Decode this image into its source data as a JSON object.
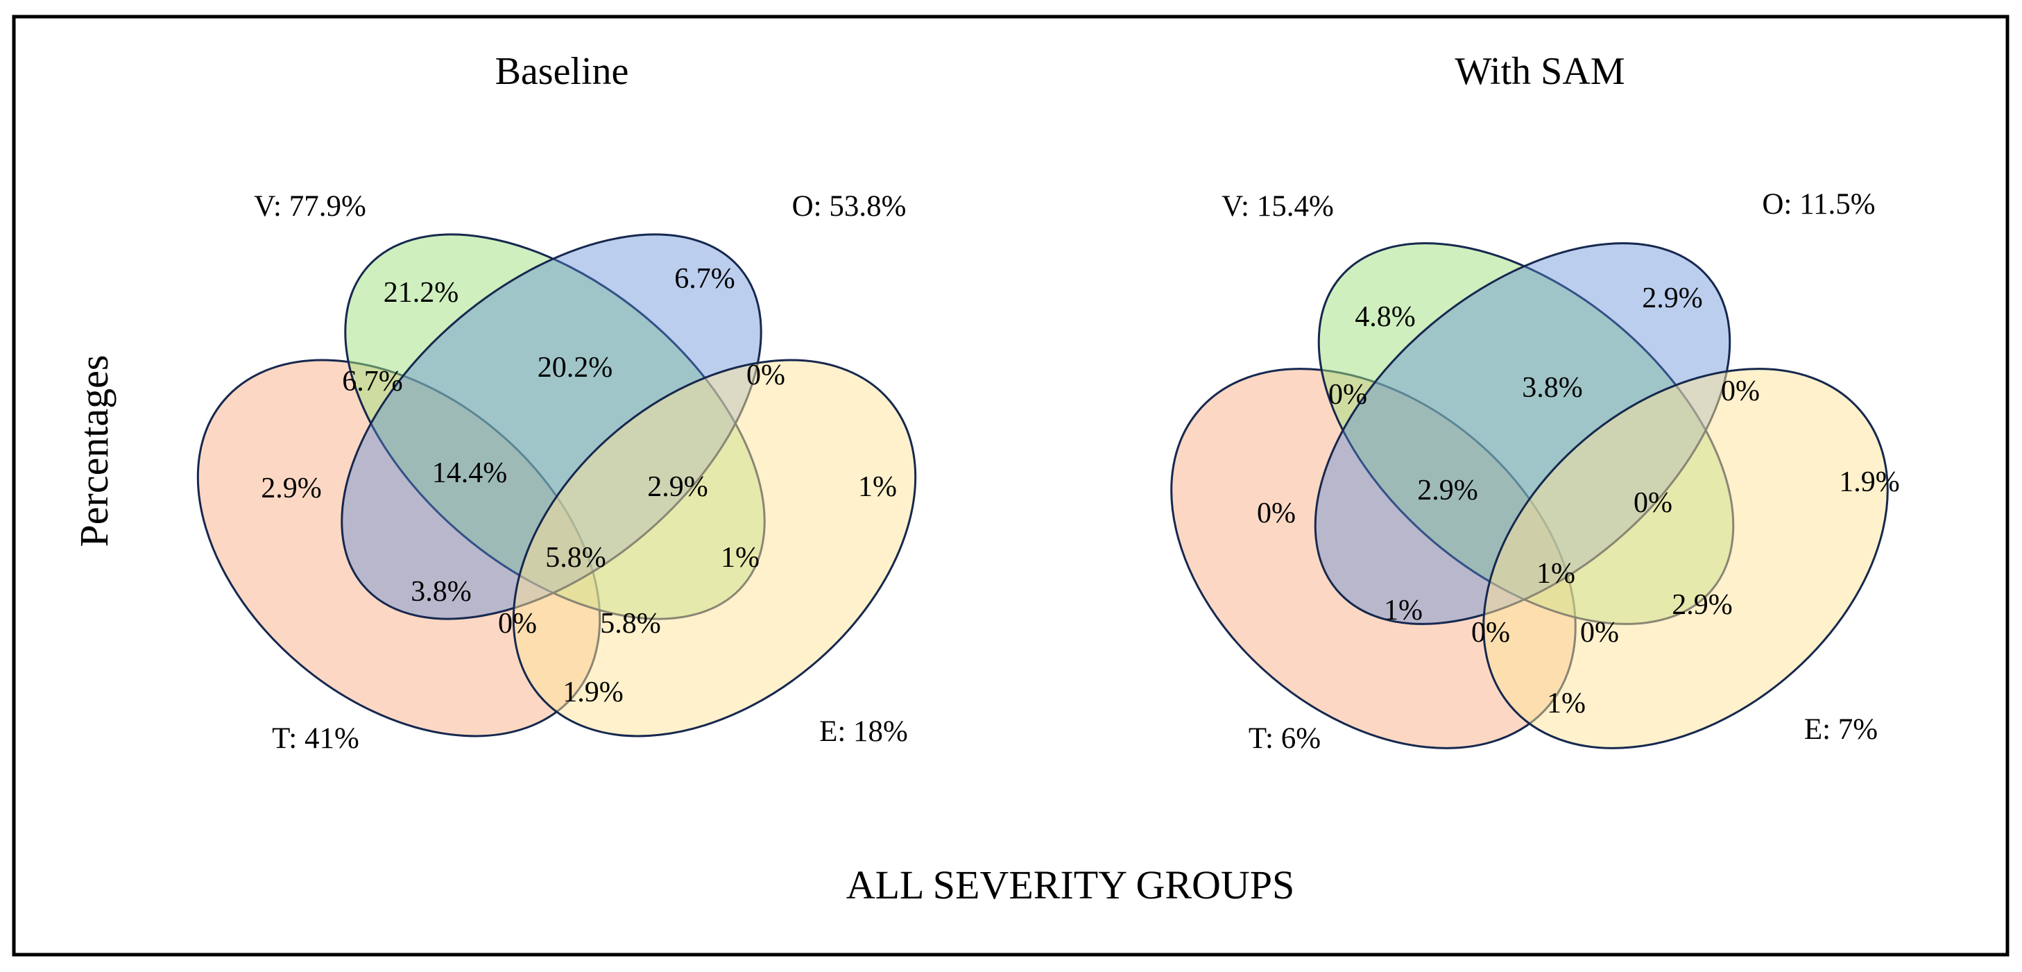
{
  "figure": {
    "ylabel": "Percentages",
    "xlabel": "ALL SEVERITY GROUPS"
  },
  "colors": {
    "T": "#f9a87c",
    "V": "#9fe07e",
    "O": "#5c8ad6",
    "E": "#fde49a",
    "outline": "#16284f"
  },
  "panels": [
    {
      "title": "Baseline",
      "sets": {
        "V": "V: 77.9%",
        "O": "O: 53.8%",
        "T": "T: 41%",
        "E": "E: 18%"
      },
      "regions": {
        "V_only": "21.2%",
        "O_only": "6.7%",
        "T_only": "2.9%",
        "E_only": "1%",
        "TV": "6.7%",
        "VO": "20.2%",
        "OE": "0%",
        "TVO": "14.4%",
        "VOE": "2.9%",
        "TVOE": "5.8%",
        "VE": "1%",
        "TO": "3.8%",
        "TOE": "0%",
        "TVE": "5.8%",
        "TE": "1.9%"
      }
    },
    {
      "title": "With SAM",
      "sets": {
        "V": "V: 15.4%",
        "O": "O: 11.5%",
        "T": "T: 6%",
        "E": "E: 7%"
      },
      "regions": {
        "V_only": "4.8%",
        "O_only": "2.9%",
        "T_only": "0%",
        "E_only": "1.9%",
        "TV": "0%",
        "VO": "3.8%",
        "OE": "0%",
        "TVO": "2.9%",
        "VOE": "0%",
        "TVOE": "1%",
        "VE": "2.9%",
        "TO": "1%",
        "TOE": "0%",
        "TVE": "0%",
        "TE": "1%"
      }
    }
  ]
}
